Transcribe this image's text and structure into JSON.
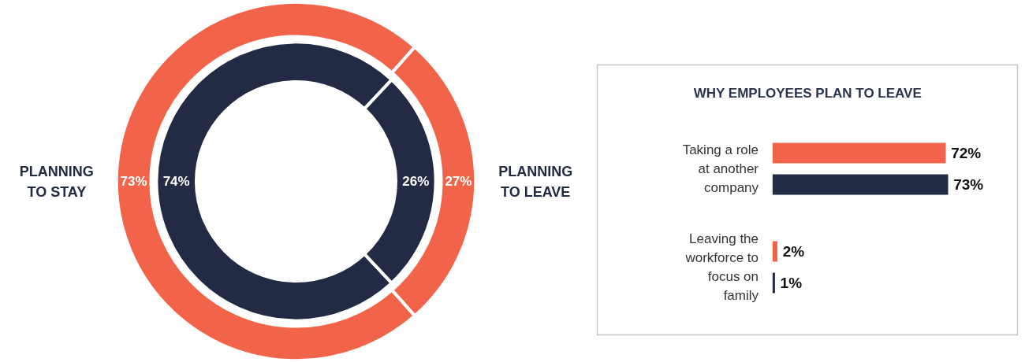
{
  "chart_data": [
    {
      "type": "donut",
      "categories": [
        "PLANNING TO STAY",
        "PLANNING TO LEAVE"
      ],
      "series": [
        {
          "color": "#f26449",
          "values": [
            73,
            27
          ],
          "value_labels": [
            "73%",
            "27%"
          ]
        },
        {
          "color": "#222a44",
          "values": [
            74,
            26
          ],
          "value_labels": [
            "74%",
            "26%"
          ]
        }
      ]
    },
    {
      "type": "bar",
      "orientation": "horizontal",
      "title": "WHY EMPLOYEES PLAN TO LEAVE",
      "categories": [
        "Taking a role at another company",
        "Leaving the workforce to focus on family"
      ],
      "series": [
        {
          "color": "#f26449",
          "values": [
            72,
            2
          ],
          "value_labels": [
            "72%",
            "2%"
          ]
        },
        {
          "color": "#222a44",
          "values": [
            73,
            1
          ],
          "value_labels": [
            "73%",
            "1%"
          ]
        }
      ]
    }
  ]
}
